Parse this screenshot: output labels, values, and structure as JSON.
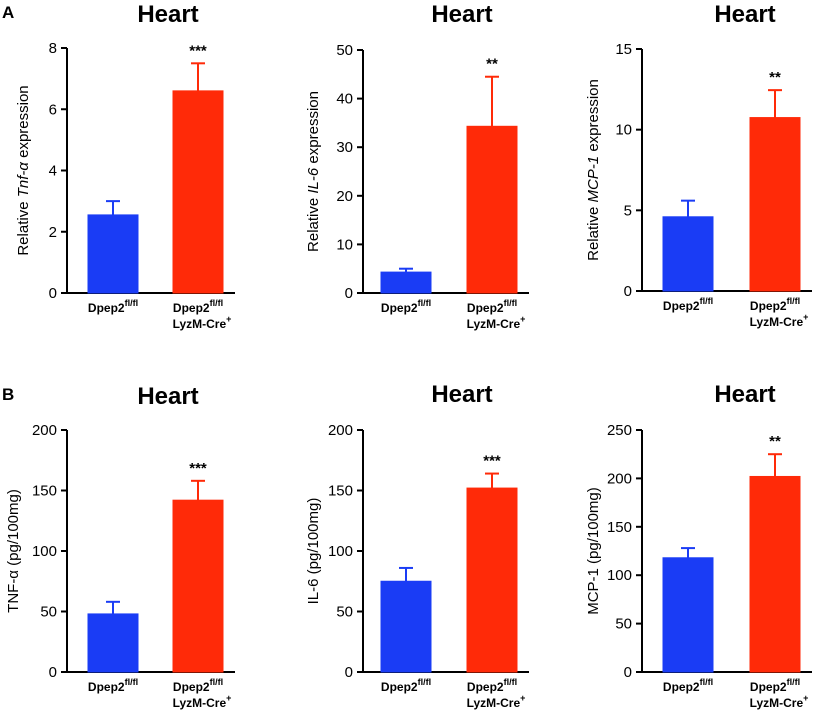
{
  "panels": [
    {
      "id": "A",
      "label": "A"
    },
    {
      "id": "B",
      "label": "B"
    }
  ],
  "categories": [
    {
      "base": "Dpep2",
      "sup": "fl/fl",
      "line2": ""
    },
    {
      "base": "Dpep2",
      "sup": "fl/fl",
      "line2": "LyzM-Cre",
      "line2_sup": "+"
    }
  ],
  "colors": {
    "control": "#1a3cf5",
    "treated": "#ff2a08",
    "axis": "#000000"
  },
  "chart_data": [
    {
      "id": "A1",
      "type": "bar",
      "title": "Heart",
      "ylabel_parts": [
        {
          "t": "Relative ",
          "i": false
        },
        {
          "t": "Tnf-α",
          "i": true
        },
        {
          "t": " expression",
          "i": false
        }
      ],
      "ylim": [
        0,
        8
      ],
      "ticks": [
        0,
        2,
        4,
        6,
        8
      ],
      "values": [
        2.55,
        6.6
      ],
      "errors": [
        0.45,
        0.9
      ],
      "significance": "***"
    },
    {
      "id": "A2",
      "type": "bar",
      "title": "Heart",
      "ylabel_parts": [
        {
          "t": "Relative ",
          "i": false
        },
        {
          "t": "IL-6",
          "i": true
        },
        {
          "t": " expression",
          "i": false
        }
      ],
      "ylim": [
        0,
        50
      ],
      "ticks": [
        0,
        10,
        20,
        30,
        40,
        50
      ],
      "values": [
        4.3,
        34.3
      ],
      "errors": [
        0.7,
        10.2
      ],
      "significance": "**"
    },
    {
      "id": "A3",
      "type": "bar",
      "title": "Heart",
      "ylabel_parts": [
        {
          "t": "Relative ",
          "i": false
        },
        {
          "t": "MCP-1",
          "i": true
        },
        {
          "t": " expression",
          "i": false
        }
      ],
      "ylim": [
        0,
        15
      ],
      "ticks": [
        0,
        5,
        10,
        15
      ],
      "values": [
        4.6,
        10.75
      ],
      "errors": [
        1.0,
        1.7
      ],
      "significance": "**"
    },
    {
      "id": "B1",
      "type": "bar",
      "title": "Heart",
      "ylabel_parts": [
        {
          "t": "TNF-α (pg/100mg)",
          "i": false
        }
      ],
      "ylim": [
        0,
        200
      ],
      "ticks": [
        0,
        50,
        100,
        150,
        200
      ],
      "values": [
        48,
        142
      ],
      "errors": [
        10,
        16
      ],
      "significance": "***"
    },
    {
      "id": "B2",
      "type": "bar",
      "title": "Heart",
      "ylabel_parts": [
        {
          "t": "IL-6 (pg/100mg)",
          "i": false
        }
      ],
      "ylim": [
        0,
        200
      ],
      "ticks": [
        0,
        50,
        100,
        150,
        200
      ],
      "values": [
        75,
        152
      ],
      "errors": [
        11,
        12
      ],
      "significance": "***"
    },
    {
      "id": "B3",
      "type": "bar",
      "title": "Heart",
      "ylabel_parts": [
        {
          "t": "MCP-1 (pg/100mg)",
          "i": false
        }
      ],
      "ylim": [
        0,
        250
      ],
      "ticks": [
        0,
        50,
        100,
        150,
        200,
        250
      ],
      "values": [
        118,
        202
      ],
      "errors": [
        10,
        23
      ],
      "significance": "**"
    }
  ]
}
